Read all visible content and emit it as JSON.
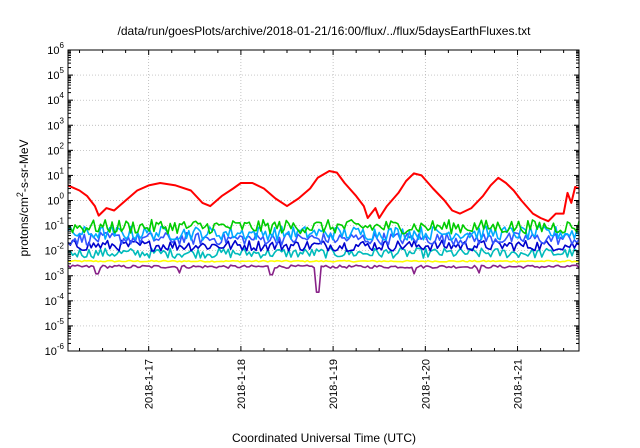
{
  "chart_data": {
    "type": "line",
    "title": "/data/run/goesPlots/archive/2018-01-21/16:00/flux/../flux/5daysEarthFluxes.txt",
    "xlabel": "Coordinated Universal Time (UTC)",
    "ylabel": "protons/cm2-s-sr-MeV",
    "ylabel_parts": {
      "pre": "protons/cm",
      "sup": "2",
      "post": "-s-sr-MeV"
    },
    "yscale": "log",
    "ylim": [
      1e-06,
      1000000.0
    ],
    "y_ticks": [
      {
        "base": "10",
        "exp": "-6"
      },
      {
        "base": "10",
        "exp": "-5"
      },
      {
        "base": "10",
        "exp": "-4"
      },
      {
        "base": "10",
        "exp": "-3"
      },
      {
        "base": "10",
        "exp": "-2"
      },
      {
        "base": "10",
        "exp": "-1"
      },
      {
        "base": "10",
        "exp": "0"
      },
      {
        "base": "10",
        "exp": "1"
      },
      {
        "base": "10",
        "exp": "2"
      },
      {
        "base": "10",
        "exp": "3"
      },
      {
        "base": "10",
        "exp": "4"
      },
      {
        "base": "10",
        "exp": "5"
      },
      {
        "base": "10",
        "exp": "6"
      }
    ],
    "xlim": [
      "2018-01-16T03:00",
      "2018-01-21T16:00"
    ],
    "x_ticks": [
      "2018-1-17",
      "2018-1-18",
      "2018-1-19",
      "2018-1-20",
      "2018-1-21"
    ],
    "grid": true,
    "series": [
      {
        "color": "#ff0000",
        "points": [
          [
            "2018-01-16T03:00",
            4.0
          ],
          [
            "2018-01-16T06:00",
            2.5
          ],
          [
            "2018-01-16T08:00",
            1.5
          ],
          [
            "2018-01-16T10:00",
            0.6
          ],
          [
            "2018-01-16T11:00",
            0.25
          ],
          [
            "2018-01-16T13:00",
            0.5
          ],
          [
            "2018-01-16T15:00",
            0.4
          ],
          [
            "2018-01-16T18:00",
            1.0
          ],
          [
            "2018-01-16T21:00",
            2.5
          ],
          [
            "2018-01-17T00:00",
            4.0
          ],
          [
            "2018-01-17T03:00",
            5.0
          ],
          [
            "2018-01-17T07:00",
            4.0
          ],
          [
            "2018-01-17T11:00",
            2.5
          ],
          [
            "2018-01-17T14:00",
            0.8
          ],
          [
            "2018-01-17T16:00",
            0.6
          ],
          [
            "2018-01-17T19:00",
            1.5
          ],
          [
            "2018-01-17T22:00",
            3.0
          ],
          [
            "2018-01-18T00:00",
            5.0
          ],
          [
            "2018-01-18T03:00",
            5.0
          ],
          [
            "2018-01-18T06:00",
            3.0
          ],
          [
            "2018-01-18T09:00",
            1.2
          ],
          [
            "2018-01-18T12:00",
            0.6
          ],
          [
            "2018-01-18T15:00",
            1.2
          ],
          [
            "2018-01-18T18:00",
            3.0
          ],
          [
            "2018-01-18T20:00",
            8.0
          ],
          [
            "2018-01-18T23:00",
            15.0
          ],
          [
            "2018-01-19T01:00",
            13.0
          ],
          [
            "2018-01-19T03:00",
            5.0
          ],
          [
            "2018-01-19T06:00",
            1.5
          ],
          [
            "2018-01-19T08:00",
            0.6
          ],
          [
            "2018-01-19T09:00",
            0.2
          ],
          [
            "2018-01-19T11:00",
            0.5
          ],
          [
            "2018-01-19T12:00",
            0.2
          ],
          [
            "2018-01-19T14:00",
            0.6
          ],
          [
            "2018-01-19T17:00",
            2.0
          ],
          [
            "2018-01-19T19:00",
            6.0
          ],
          [
            "2018-01-19T21:00",
            12.0
          ],
          [
            "2018-01-19T23:00",
            10.0
          ],
          [
            "2018-01-20T02:00",
            3.0
          ],
          [
            "2018-01-20T05:00",
            1.0
          ],
          [
            "2018-01-20T07:00",
            0.4
          ],
          [
            "2018-01-20T09:00",
            0.3
          ],
          [
            "2018-01-20T12:00",
            0.5
          ],
          [
            "2018-01-20T15:00",
            1.5
          ],
          [
            "2018-01-20T17:00",
            4.0
          ],
          [
            "2018-01-20T19:00",
            8.0
          ],
          [
            "2018-01-20T21:00",
            5.0
          ],
          [
            "2018-01-20T23:00",
            2.5
          ],
          [
            "2018-01-21T01:00",
            1.0
          ],
          [
            "2018-01-21T04:00",
            0.3
          ],
          [
            "2018-01-21T06:00",
            0.2
          ],
          [
            "2018-01-21T08:00",
            0.15
          ],
          [
            "2018-01-21T10:00",
            0.3
          ],
          [
            "2018-01-21T12:00",
            0.3
          ],
          [
            "2018-01-21T13:00",
            2.0
          ],
          [
            "2018-01-21T14:00",
            0.8
          ],
          [
            "2018-01-21T15:00",
            3.5
          ],
          [
            "2018-01-21T16:00",
            3.0
          ]
        ]
      },
      {
        "color": "#00cc00",
        "level": 0.09,
        "noise_dex": 0.28
      },
      {
        "color": "#00aaff",
        "level": 0.05,
        "noise_dex": 0.28
      },
      {
        "color": "#3355ff",
        "level": 0.03,
        "noise_dex": 0.25
      },
      {
        "color": "#0000cc",
        "level": 0.016,
        "noise_dex": 0.22
      },
      {
        "color": "#00bbbb",
        "level": 0.008,
        "noise_dex": 0.2
      },
      {
        "color": "#ffff00",
        "level": 0.0038,
        "noise_dex": 0.03
      },
      {
        "color": "#882288",
        "level": 0.0023,
        "noise_dex": 0.06,
        "dips": [
          [
            "2018-01-16T10:30",
            0.0012
          ],
          [
            "2018-01-17T08:00",
            0.0013
          ],
          [
            "2018-01-18T08:00",
            0.0011
          ],
          [
            "2018-01-18T20:00",
            0.00022
          ],
          [
            "2018-01-19T21:00",
            0.0012
          ],
          [
            "2018-01-20T14:00",
            0.0013
          ]
        ]
      }
    ]
  }
}
